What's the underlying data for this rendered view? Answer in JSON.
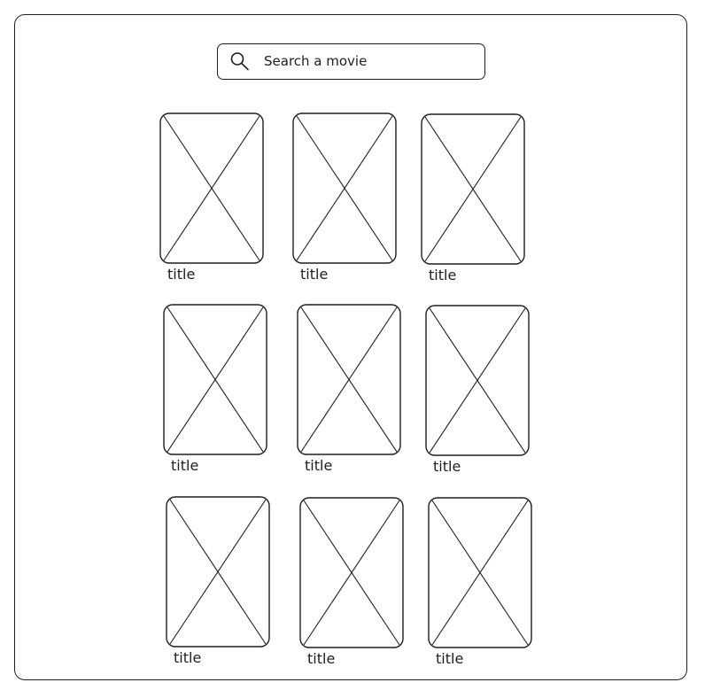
{
  "search": {
    "placeholder": "Search a movie",
    "icon": "search-icon"
  },
  "movies": [
    {
      "title": "title",
      "icon": "image-placeholder-icon"
    },
    {
      "title": "title",
      "icon": "image-placeholder-icon"
    },
    {
      "title": "title",
      "icon": "image-placeholder-icon"
    },
    {
      "title": "title",
      "icon": "image-placeholder-icon"
    },
    {
      "title": "title",
      "icon": "image-placeholder-icon"
    },
    {
      "title": "title",
      "icon": "image-placeholder-icon"
    },
    {
      "title": "title",
      "icon": "image-placeholder-icon"
    },
    {
      "title": "title",
      "icon": "image-placeholder-icon"
    },
    {
      "title": "title",
      "icon": "image-placeholder-icon"
    }
  ],
  "colors": {
    "stroke": "#1e1e1e",
    "background": "#ffffff"
  }
}
